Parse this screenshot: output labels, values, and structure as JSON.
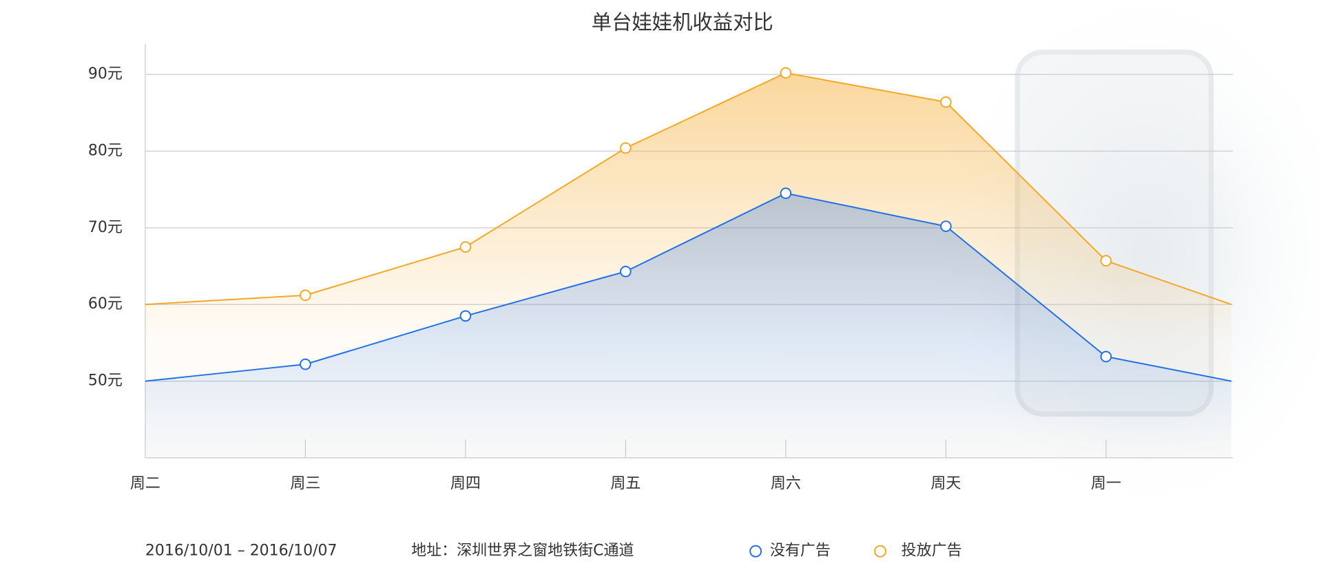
{
  "chart_data": {
    "type": "line",
    "title": "单台娃娃机收益对比",
    "categories": [
      "周二",
      "周三",
      "周四",
      "周五",
      "周六",
      "周天",
      "周一",
      null
    ],
    "series": [
      {
        "name": "没有广告",
        "color": "#1f6fe5",
        "values": [
          50,
          52.2,
          58.5,
          64.3,
          74.5,
          70.2,
          53.2,
          50
        ]
      },
      {
        "name": "投放广告",
        "color": "#f5a623",
        "values": [
          60,
          61.2,
          67.5,
          80.4,
          90.2,
          86.4,
          65.7,
          60
        ]
      }
    ],
    "ylim": [
      40,
      94
    ],
    "yticks": [
      {
        "value": 50,
        "label": "50元"
      },
      {
        "value": 60,
        "label": "60元"
      },
      {
        "value": 70,
        "label": "70元"
      },
      {
        "value": 80,
        "label": "80元"
      },
      {
        "value": 90,
        "label": "90元"
      }
    ],
    "grid": true,
    "date_range": "2016/10/01 – 2016/10/07",
    "address": "地址：深圳世界之窗地铁街C通道"
  }
}
